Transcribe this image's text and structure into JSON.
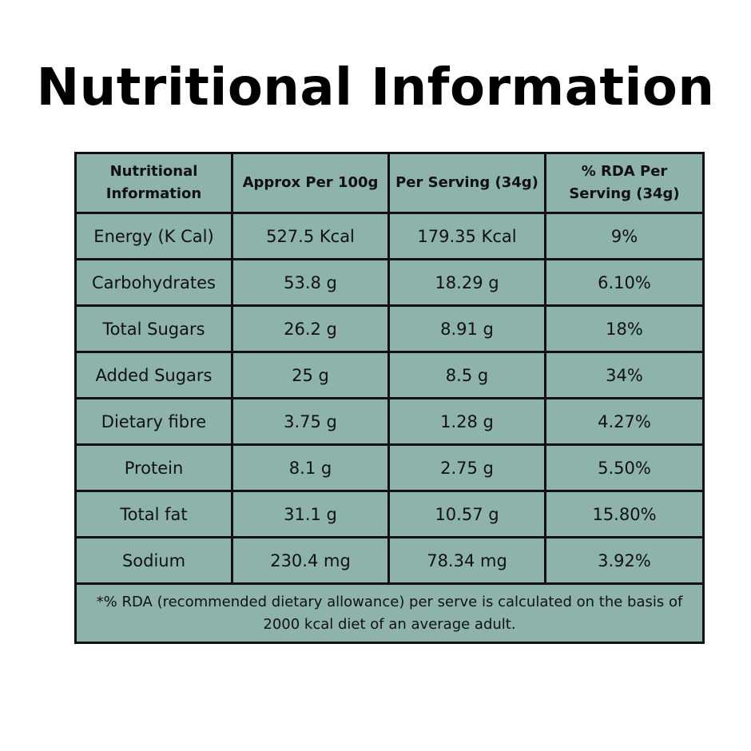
{
  "title": "Nutritional Information",
  "columns": [
    "Nutritional Information",
    "Approx Per 100g",
    "Per Serving (34g)",
    "% RDA Per Serving (34g)"
  ],
  "rows": [
    {
      "nutrient": "Energy (K Cal)",
      "per100g": "527.5 Kcal",
      "perServing": "179.35 Kcal",
      "rda": "9%"
    },
    {
      "nutrient": "Carbohydrates",
      "per100g": "53.8 g",
      "perServing": "18.29 g",
      "rda": "6.10%"
    },
    {
      "nutrient": "Total Sugars",
      "per100g": "26.2 g",
      "perServing": "8.91 g",
      "rda": "18%"
    },
    {
      "nutrient": "Added Sugars",
      "per100g": "25 g",
      "perServing": "8.5 g",
      "rda": "34%"
    },
    {
      "nutrient": "Dietary fibre",
      "per100g": "3.75 g",
      "perServing": "1.28 g",
      "rda": "4.27%"
    },
    {
      "nutrient": "Protein",
      "per100g": "8.1 g",
      "perServing": "2.75 g",
      "rda": "5.50%"
    },
    {
      "nutrient": "Total fat",
      "per100g": "31.1 g",
      "perServing": "10.57 g",
      "rda": "15.80%"
    },
    {
      "nutrient": "Sodium",
      "per100g": "230.4 mg",
      "perServing": "78.34 mg",
      "rda": "3.92%"
    }
  ],
  "footnote": "*% RDA (recommended dietary allowance) per serve is calculated on the basis of 2000 kcal diet of an average adult.",
  "colors": {
    "table_background": "#8db3aa",
    "border": "#111111",
    "text": "#111111"
  }
}
